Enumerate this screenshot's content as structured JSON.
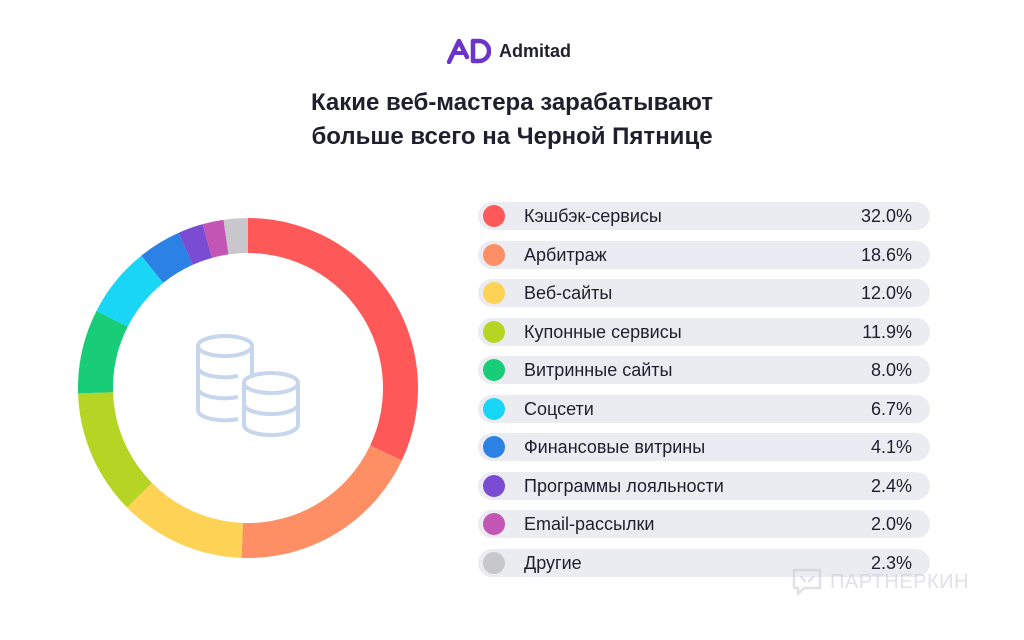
{
  "brand": {
    "name": "Admitad",
    "color": "#6b35c9"
  },
  "header": {
    "title_line1": "Какие веб-мастера зарабатывают",
    "title_line2": "больше всего на Черной Пятнице"
  },
  "watermark": {
    "text": "ПАРТНЕРКИН"
  },
  "chart_data": {
    "type": "pie",
    "variant": "donut",
    "categories": [
      "Кэшбэк-сервисы",
      "Арбитраж",
      "Веб-сайты",
      "Купонные сервисы",
      "Витринные сайты",
      "Соцсети",
      "Финансовые витрины",
      "Программы лояльности",
      "Email-рассылки",
      "Другие"
    ],
    "values": [
      32.0,
      18.6,
      12.0,
      11.9,
      8.0,
      6.7,
      4.1,
      2.4,
      2.0,
      2.3
    ],
    "value_labels": [
      "32.0%",
      "18.6%",
      "12.0%",
      "11.9%",
      "8.0%",
      "6.7%",
      "4.1%",
      "2.4%",
      "2.0%",
      "2.3%"
    ],
    "colors": [
      "#fe5858",
      "#fe8f64",
      "#fed254",
      "#b6d423",
      "#19cc78",
      "#1ad6f6",
      "#2b82e4",
      "#7a4bd3",
      "#c355b5",
      "#c8c8cc"
    ],
    "legend_position": "right",
    "center_icon": "coins-stack-icon"
  }
}
